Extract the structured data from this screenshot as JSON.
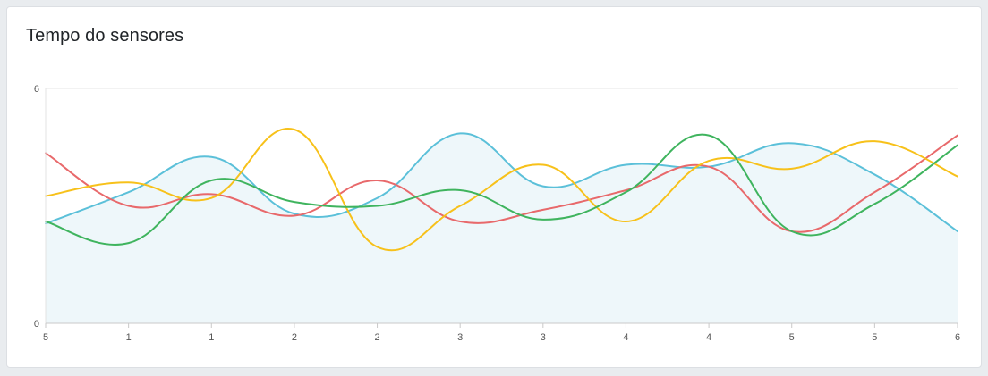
{
  "card": {
    "title": "Tempo do sensores"
  },
  "chart_data": {
    "type": "line",
    "title": "Tempo do sensores",
    "xlabel": "",
    "ylabel": "",
    "ylim": [
      0,
      6
    ],
    "y_ticks": [
      "0",
      "6"
    ],
    "categories": [
      "5",
      "1",
      "1",
      "2",
      "2",
      "3",
      "3",
      "4",
      "4",
      "5",
      "5",
      "6"
    ],
    "grid": "horizontal",
    "legend": "none",
    "series": [
      {
        "color": "#5bc0d9",
        "fill": "#eef7fa",
        "filled": true,
        "values": [
          2.55,
          3.35,
          4.25,
          2.8,
          3.2,
          4.85,
          3.5,
          4.05,
          4.0,
          4.6,
          3.8,
          2.35
        ]
      },
      {
        "color": "#e8696b",
        "filled": false,
        "values": [
          4.35,
          3.0,
          3.3,
          2.75,
          3.65,
          2.6,
          2.9,
          3.4,
          4.0,
          2.35,
          3.35,
          4.8
        ]
      },
      {
        "color": "#f7c11a",
        "filled": false,
        "values": [
          3.25,
          3.6,
          3.2,
          4.95,
          1.95,
          3.0,
          4.05,
          2.6,
          4.15,
          3.95,
          4.65,
          3.75
        ]
      },
      {
        "color": "#3fb45e",
        "filled": false,
        "values": [
          2.6,
          2.05,
          3.65,
          3.1,
          3.0,
          3.4,
          2.65,
          3.35,
          4.8,
          2.35,
          3.05,
          4.55
        ]
      }
    ]
  }
}
